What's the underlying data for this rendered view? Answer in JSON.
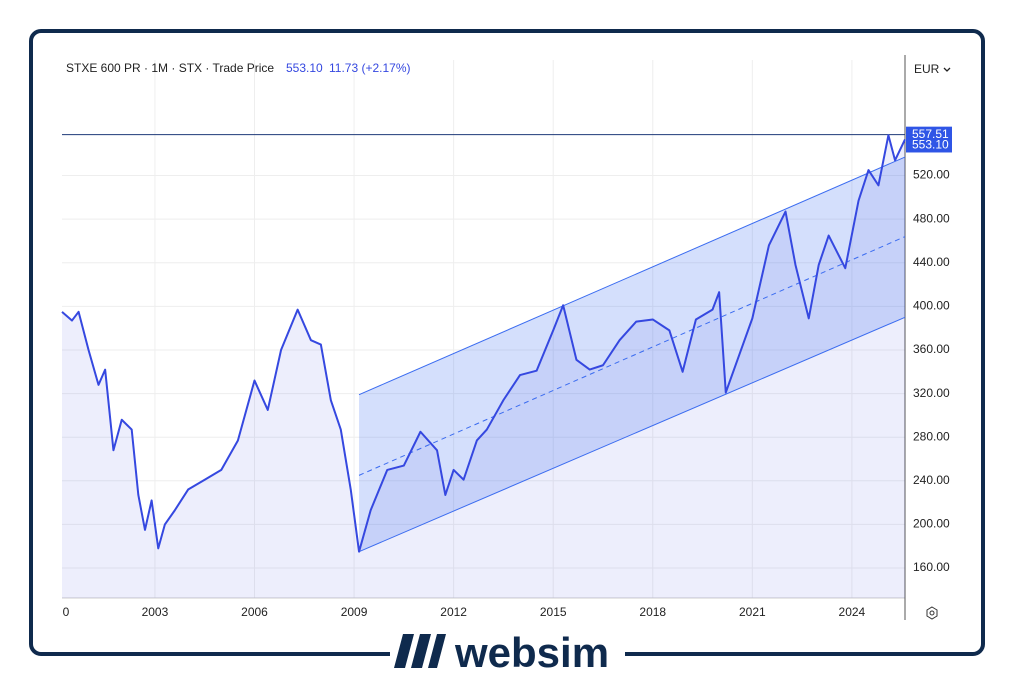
{
  "header": {
    "instrument": "STXE 600 PR · 1M · STX · Trade Price",
    "last": "553.10",
    "change": "11.73 (+2.17%)",
    "currency": "EUR"
  },
  "logo": "websim",
  "chart_data": {
    "type": "line",
    "x": [
      2000.2,
      2000.5,
      2000.7,
      2001.0,
      2001.3,
      2001.5,
      2001.75,
      2002.0,
      2002.3,
      2002.5,
      2002.7,
      2002.9,
      2003.1,
      2003.3,
      2003.6,
      2004.0,
      2004.5,
      2005.0,
      2005.5,
      2006.0,
      2006.4,
      2006.8,
      2007.3,
      2007.7,
      2008.0,
      2008.3,
      2008.6,
      2008.9,
      2009.15,
      2009.5,
      2010.0,
      2010.5,
      2011.0,
      2011.5,
      2011.75,
      2012.0,
      2012.3,
      2012.7,
      2013.0,
      2013.5,
      2014.0,
      2014.5,
      2015.0,
      2015.3,
      2015.7,
      2016.1,
      2016.5,
      2017.0,
      2017.5,
      2018.0,
      2018.5,
      2018.9,
      2019.3,
      2019.8,
      2020.0,
      2020.2,
      2020.6,
      2021.0,
      2021.5,
      2022.0,
      2022.3,
      2022.7,
      2023.0,
      2023.3,
      2023.8,
      2024.2,
      2024.5,
      2024.8,
      2025.1,
      2025.3,
      2025.6
    ],
    "series": [
      {
        "color": "#3548e0",
        "values": [
          395,
          387,
          395,
          360,
          328,
          342,
          268,
          296,
          287,
          227,
          195,
          222,
          178,
          200,
          213,
          232,
          241,
          250,
          277,
          332,
          305,
          360,
          397,
          369,
          365,
          314,
          287,
          232,
          175,
          213,
          250,
          254,
          285,
          268,
          227,
          250,
          241,
          277,
          287,
          314,
          337,
          341,
          378,
          401,
          351,
          342,
          346,
          369,
          386,
          388,
          378,
          340,
          388,
          397,
          413,
          321,
          355,
          389,
          456,
          487,
          438,
          389,
          438,
          465,
          435,
          497,
          525,
          511,
          557,
          534,
          553.1
        ]
      }
    ],
    "channel": {
      "x": [
        2009.15,
        2025.6
      ],
      "upper": [
        319,
        537
      ],
      "middle": [
        245,
        464
      ],
      "lower": [
        175,
        390
      ],
      "color": "#3b6cf0"
    },
    "price_line": {
      "value": 557.51,
      "label": "557.51"
    },
    "last_price": {
      "value": 553.1,
      "label": "553.10"
    },
    "xlim": [
      2000.2,
      2025.6
    ],
    "ylim": [
      132.5,
      626
    ],
    "xticks": [
      {
        "value": 2000,
        "label": "0"
      },
      2003,
      2006,
      2009,
      2012,
      2015,
      2018,
      2021,
      2024
    ],
    "yticks": [
      {
        "value": 160,
        "label": "160.00"
      },
      {
        "value": 200,
        "label": "200.00"
      },
      {
        "value": 240,
        "label": "240.00"
      },
      {
        "value": 280,
        "label": "280.00"
      },
      {
        "value": 320,
        "label": "320.00"
      },
      {
        "value": 360,
        "label": "360.00"
      },
      {
        "value": 400,
        "label": "400.00"
      },
      {
        "value": 440,
        "label": "440.00"
      },
      {
        "value": 480,
        "label": "480.00"
      },
      {
        "value": 520,
        "label": "520.00"
      }
    ],
    "grid": true
  }
}
